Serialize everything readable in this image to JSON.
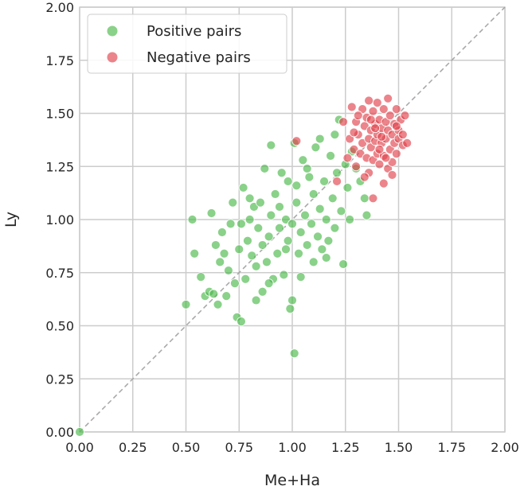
{
  "chart_data": {
    "type": "scatter",
    "title": "",
    "xlabel": "Me+Ha",
    "ylabel": "Ly",
    "xlim": [
      0,
      2
    ],
    "ylim": [
      0,
      2
    ],
    "x_ticks": [
      "0.00",
      "0.25",
      "0.50",
      "0.75",
      "1.00",
      "1.25",
      "1.50",
      "1.75",
      "2.00"
    ],
    "y_ticks": [
      "0.00",
      "0.25",
      "0.50",
      "0.75",
      "1.00",
      "1.25",
      "1.50",
      "1.75",
      "2.00"
    ],
    "grid": true,
    "legend_position": "top-left",
    "reference_line": {
      "style": "dashed",
      "color": "#a6a6a6",
      "from": [
        0,
        0
      ],
      "to": [
        2,
        2
      ]
    },
    "series": [
      {
        "name": "Positive pairs",
        "color": "#4cb84c",
        "points": [
          [
            0.0,
            0.0
          ],
          [
            0.5,
            0.6
          ],
          [
            0.53,
            1.0
          ],
          [
            0.54,
            0.84
          ],
          [
            0.57,
            0.73
          ],
          [
            0.59,
            0.64
          ],
          [
            0.61,
            0.66
          ],
          [
            0.62,
            1.03
          ],
          [
            0.63,
            0.65
          ],
          [
            0.64,
            0.88
          ],
          [
            0.65,
            0.6
          ],
          [
            0.66,
            0.8
          ],
          [
            0.67,
            0.94
          ],
          [
            0.68,
            0.84
          ],
          [
            0.69,
            0.64
          ],
          [
            0.7,
            0.76
          ],
          [
            0.71,
            0.98
          ],
          [
            0.72,
            1.08
          ],
          [
            0.74,
            0.54
          ],
          [
            0.75,
            0.86
          ],
          [
            0.76,
            0.52
          ],
          [
            0.76,
            0.98
          ],
          [
            0.77,
            1.15
          ],
          [
            0.78,
            0.72
          ],
          [
            0.79,
            0.9
          ],
          [
            0.8,
            1.0
          ],
          [
            0.81,
            0.83
          ],
          [
            0.82,
            1.06
          ],
          [
            0.83,
            0.62
          ],
          [
            0.84,
            0.96
          ],
          [
            0.85,
            1.08
          ],
          [
            0.86,
            0.66
          ],
          [
            0.86,
            0.88
          ],
          [
            0.87,
            1.24
          ],
          [
            0.88,
            0.8
          ],
          [
            0.89,
            0.92
          ],
          [
            0.9,
            1.35
          ],
          [
            0.9,
            1.02
          ],
          [
            0.91,
            0.72
          ],
          [
            0.92,
            1.12
          ],
          [
            0.93,
            0.84
          ],
          [
            0.94,
            0.96
          ],
          [
            0.95,
            1.22
          ],
          [
            0.96,
            0.74
          ],
          [
            0.97,
            1.0
          ],
          [
            0.98,
            0.9
          ],
          [
            0.98,
            1.18
          ],
          [
            0.99,
            0.58
          ],
          [
            1.0,
            0.98
          ],
          [
            1.0,
            0.62
          ],
          [
            1.01,
            0.37
          ],
          [
            1.01,
            1.36
          ],
          [
            1.02,
            1.08
          ],
          [
            1.03,
            0.84
          ],
          [
            1.04,
            0.94
          ],
          [
            1.04,
            0.73
          ],
          [
            1.05,
            1.28
          ],
          [
            1.06,
            1.02
          ],
          [
            1.07,
            0.88
          ],
          [
            1.08,
            1.2
          ],
          [
            1.09,
            0.98
          ],
          [
            1.1,
            0.8
          ],
          [
            1.1,
            1.12
          ],
          [
            1.11,
            1.34
          ],
          [
            1.12,
            0.92
          ],
          [
            1.13,
            1.05
          ],
          [
            1.14,
            0.86
          ],
          [
            1.15,
            1.18
          ],
          [
            1.16,
            1.0
          ],
          [
            1.17,
            0.9
          ],
          [
            1.18,
            1.3
          ],
          [
            1.19,
            1.1
          ],
          [
            1.2,
            0.96
          ],
          [
            1.21,
            1.22
          ],
          [
            1.22,
            1.47
          ],
          [
            1.23,
            1.04
          ],
          [
            1.24,
            0.79
          ],
          [
            1.25,
            1.26
          ],
          [
            1.26,
            1.15
          ],
          [
            1.27,
            1.0
          ],
          [
            1.28,
            1.32
          ],
          [
            1.3,
            1.24
          ],
          [
            1.32,
            1.18
          ],
          [
            1.34,
            1.1
          ],
          [
            1.35,
            1.02
          ],
          [
            0.83,
            0.78
          ],
          [
            0.89,
            0.7
          ],
          [
            0.94,
            1.06
          ],
          [
            1.02,
            1.16
          ],
          [
            1.07,
            1.24
          ],
          [
            1.13,
            1.38
          ],
          [
            1.16,
            0.82
          ],
          [
            1.2,
            1.4
          ],
          [
            0.97,
            0.86
          ],
          [
            0.73,
            0.7
          ],
          [
            0.8,
            1.1
          ]
        ]
      },
      {
        "name": "Negative pairs",
        "color": "#e0434d",
        "points": [
          [
            1.02,
            1.37
          ],
          [
            1.21,
            1.18
          ],
          [
            1.24,
            1.46
          ],
          [
            1.26,
            1.29
          ],
          [
            1.27,
            1.38
          ],
          [
            1.28,
            1.53
          ],
          [
            1.29,
            1.33
          ],
          [
            1.3,
            1.46
          ],
          [
            1.3,
            1.25
          ],
          [
            1.31,
            1.4
          ],
          [
            1.32,
            1.31
          ],
          [
            1.33,
            1.52
          ],
          [
            1.33,
            1.36
          ],
          [
            1.34,
            1.44
          ],
          [
            1.35,
            1.29
          ],
          [
            1.35,
            1.48
          ],
          [
            1.36,
            1.38
          ],
          [
            1.36,
            1.22
          ],
          [
            1.37,
            1.42
          ],
          [
            1.37,
            1.34
          ],
          [
            1.38,
            1.51
          ],
          [
            1.38,
            1.28
          ],
          [
            1.39,
            1.45
          ],
          [
            1.39,
            1.37
          ],
          [
            1.4,
            1.55
          ],
          [
            1.4,
            1.4
          ],
          [
            1.4,
            1.31
          ],
          [
            1.41,
            1.47
          ],
          [
            1.41,
            1.26
          ],
          [
            1.42,
            1.43
          ],
          [
            1.42,
            1.36
          ],
          [
            1.43,
            1.52
          ],
          [
            1.43,
            1.3
          ],
          [
            1.44,
            1.46
          ],
          [
            1.44,
            1.38
          ],
          [
            1.45,
            1.24
          ],
          [
            1.45,
            1.42
          ],
          [
            1.46,
            1.49
          ],
          [
            1.46,
            1.33
          ],
          [
            1.47,
            1.4
          ],
          [
            1.47,
            1.27
          ],
          [
            1.48,
            1.45
          ],
          [
            1.48,
            1.36
          ],
          [
            1.49,
            1.52
          ],
          [
            1.49,
            1.31
          ],
          [
            1.5,
            1.42
          ],
          [
            1.5,
            1.38
          ],
          [
            1.51,
            1.47
          ],
          [
            1.52,
            1.35
          ],
          [
            1.52,
            1.4
          ],
          [
            1.53,
            1.49
          ],
          [
            1.54,
            1.36
          ],
          [
            1.38,
            1.1
          ],
          [
            1.43,
            1.17
          ],
          [
            1.47,
            1.21
          ],
          [
            1.34,
            1.2
          ],
          [
            1.31,
            1.49
          ],
          [
            1.36,
            1.56
          ],
          [
            1.41,
            1.33
          ],
          [
            1.45,
            1.57
          ],
          [
            1.29,
            1.41
          ],
          [
            1.39,
            1.43
          ],
          [
            1.44,
            1.29
          ],
          [
            1.49,
            1.44
          ],
          [
            1.42,
            1.39
          ],
          [
            1.37,
            1.47
          ]
        ]
      }
    ]
  }
}
